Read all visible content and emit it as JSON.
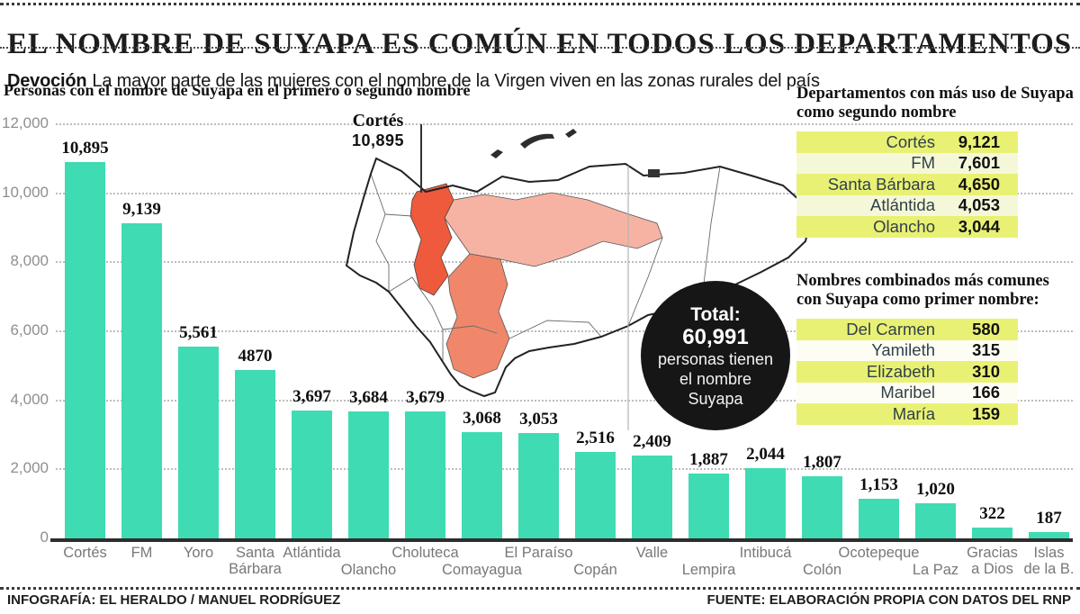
{
  "header": {
    "title": "EL NOMBRE DE SUYAPA ES COMÚN EN TODOS LOS DEPARTAMENTOS",
    "kicker": "Devoción",
    "subtitle": "La mayor parte de las mujeres con el nombre de la Virgen viven en las zonas rurales del país"
  },
  "chart_data": {
    "type": "bar",
    "title": "Personas con el nombre de Suyapa en el primero o segundo nombre",
    "categories": [
      "Cortés",
      "FM",
      "Yoro",
      "Santa Bárbara",
      "Atlántida",
      "Olancho",
      "Choluteca",
      "Comayagua",
      "El Paraíso",
      "Copán",
      "Valle",
      "Lempira",
      "Intibucá",
      "Colón",
      "Ocotepeque",
      "La Paz",
      "Gracias a Dios",
      "Islas de la B."
    ],
    "values": [
      10895,
      9139,
      5561,
      4870,
      3697,
      3684,
      3679,
      3068,
      3053,
      2516,
      2409,
      1887,
      2044,
      1807,
      1153,
      1020,
      322,
      187
    ],
    "value_labels": [
      "10,895",
      "9,139",
      "5,561",
      "4870",
      "3,697",
      "3,684",
      "3,679",
      "3,068",
      "3,053",
      "2,516",
      "2,409",
      "1,887",
      "2,044",
      "1,807",
      "1,153",
      "1,020",
      "322",
      "187"
    ],
    "xlabels": [
      {
        "lines": [
          "Cortés"
        ],
        "row": 1
      },
      {
        "lines": [
          "FM"
        ],
        "row": 1
      },
      {
        "lines": [
          "Yoro"
        ],
        "row": 1
      },
      {
        "lines": [
          "Santa",
          "Bárbara"
        ],
        "row": 1
      },
      {
        "lines": [
          "Atlántida"
        ],
        "row": 1
      },
      {
        "lines": [
          "Olancho"
        ],
        "row": 2
      },
      {
        "lines": [
          "Choluteca"
        ],
        "row": 1
      },
      {
        "lines": [
          "Comayagua"
        ],
        "row": 2
      },
      {
        "lines": [
          "El Paraíso"
        ],
        "row": 1
      },
      {
        "lines": [
          "Copán"
        ],
        "row": 2
      },
      {
        "lines": [
          "Valle"
        ],
        "row": 1
      },
      {
        "lines": [
          "Lempira"
        ],
        "row": 2
      },
      {
        "lines": [
          "Intibucá"
        ],
        "row": 1
      },
      {
        "lines": [
          "Colón"
        ],
        "row": 2
      },
      {
        "lines": [
          "Ocotepeque"
        ],
        "row": 1
      },
      {
        "lines": [
          "La Paz"
        ],
        "row": 2
      },
      {
        "lines": [
          "Gracias",
          "a Dios"
        ],
        "row": 1
      },
      {
        "lines": [
          "Islas",
          "de la B."
        ],
        "row": 1
      }
    ],
    "ylim": [
      0,
      12000
    ],
    "yticks": [
      12000,
      10000,
      8000,
      6000,
      4000,
      2000,
      0
    ],
    "ytick_labels": [
      "12,000",
      "10,000",
      "8,000",
      "6,000",
      "4,000",
      "2,000",
      "0"
    ],
    "grid": "horizontal dotted",
    "legend": "none",
    "bar_color": "#3fdbb3"
  },
  "map": {
    "callout": {
      "label": "Cortés",
      "value": "10,895"
    },
    "regions": [
      {
        "name": "Cortés",
        "color": "#ee5a3b"
      },
      {
        "name": "Yoro",
        "color": "#f6b3a3"
      },
      {
        "name": "Francisco Morazán",
        "color": "#f0876a"
      }
    ]
  },
  "total_badge": {
    "title": "Total:",
    "value": "60,991",
    "lines": [
      "personas tienen",
      "el nombre",
      "Suyapa"
    ]
  },
  "tables": [
    {
      "title": "Departamentos con más uso de Suyapa como segundo nombre",
      "rows": [
        {
          "name": "Cortés",
          "value": "9,121"
        },
        {
          "name": "FM",
          "value": "7,601"
        },
        {
          "name": "Santa Bárbara",
          "value": "4,650"
        },
        {
          "name": "Atlántida",
          "value": "4,053"
        },
        {
          "name": "Olancho",
          "value": "3,044"
        }
      ]
    },
    {
      "title": "Nombres combinados más comunes con Suyapa como primer nombre:",
      "rows": [
        {
          "name": "Del Carmen",
          "value": "580"
        },
        {
          "name": "Yamileth",
          "value": "315"
        },
        {
          "name": "Elizabeth",
          "value": "310"
        },
        {
          "name": "Maribel",
          "value": "166"
        },
        {
          "name": "María",
          "value": "159"
        }
      ]
    }
  ],
  "footer": {
    "left": "INFOGRAFÍA: EL HERALDO / MANUEL RODRÍGUEZ",
    "right": "FUENTE: ELABORACIÓN PROPIA CON DATOS DEL RNP"
  },
  "colors": {
    "bar": "#3fdbb3",
    "row_highlight": "#e9f175",
    "row_alt": "#f5f8d8",
    "map_cortes": "#ee5a3b",
    "map_yoro": "#f6b3a3",
    "map_francisco_morazan": "#f0876a",
    "badge_background": "#161616"
  }
}
